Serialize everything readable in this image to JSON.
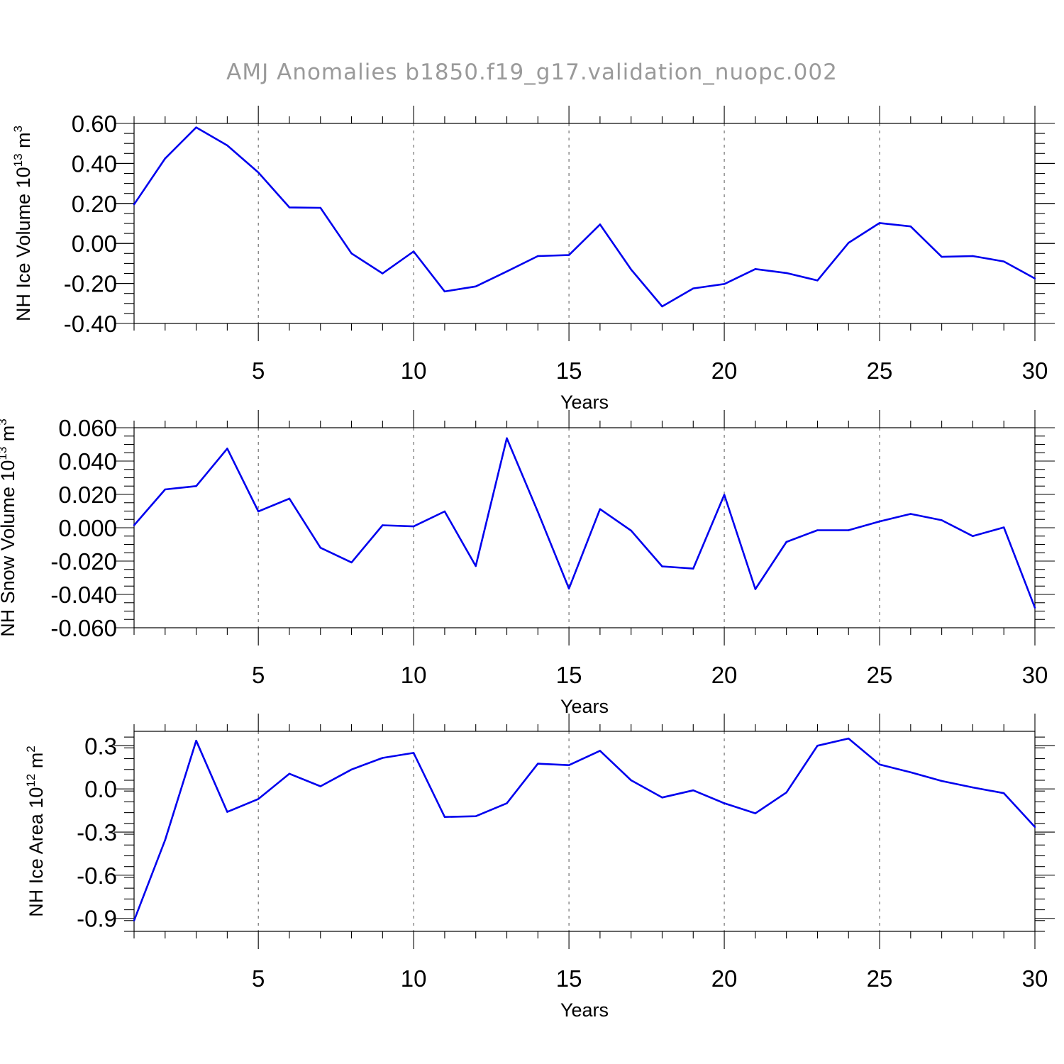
{
  "chart_data": {
    "title": "AMJ Anomalies b1850.f19_g17.validation_nuopc.002",
    "panels": [
      {
        "type": "line",
        "ylabel": "NH Ice Volume 10",
        "ylabel_exponent": "13",
        "ylabel_unit": "m",
        "ylabel_unit_exponent": "3",
        "xlabel": "Years",
        "xlim": [
          1,
          30
        ],
        "ylim": [
          -0.4,
          0.6
        ],
        "yticks": [
          -0.4,
          -0.2,
          0.0,
          0.2,
          0.4,
          0.6
        ],
        "ytick_labels": [
          "-0.40",
          "-0.20",
          "0.00",
          "0.20",
          "0.40",
          "0.60"
        ],
        "y_minor_step": 0.05,
        "x": [
          1,
          2,
          3,
          4,
          5,
          6,
          7,
          8,
          9,
          10,
          11,
          12,
          13,
          14,
          15,
          16,
          17,
          18,
          19,
          20,
          21,
          22,
          23,
          24,
          25,
          26,
          27,
          28,
          29,
          30
        ],
        "series": [
          {
            "name": "NH Ice Volume",
            "color": "#0000ee",
            "values": [
              0.195,
              0.425,
              0.58,
              0.49,
              0.355,
              0.18,
              0.178,
              -0.05,
              -0.15,
              -0.04,
              -0.24,
              -0.215,
              -0.14,
              -0.063,
              -0.058,
              0.095,
              -0.13,
              -0.315,
              -0.225,
              -0.203,
              -0.128,
              -0.148,
              -0.185,
              0.003,
              0.102,
              0.085,
              -0.067,
              -0.063,
              -0.09,
              -0.175
            ]
          }
        ]
      },
      {
        "type": "line",
        "ylabel": "NH Snow Volume 10",
        "ylabel_exponent": "13",
        "ylabel_unit": "m",
        "ylabel_unit_exponent": "3",
        "xlabel": "Years",
        "xlim": [
          1,
          30
        ],
        "ylim": [
          -0.06,
          0.06
        ],
        "yticks": [
          -0.06,
          -0.04,
          -0.02,
          0.0,
          0.02,
          0.04,
          0.06
        ],
        "ytick_labels": [
          "-0.060",
          "-0.040",
          "-0.020",
          "0.000",
          "0.020",
          "0.040",
          "0.060"
        ],
        "y_minor_step": 0.005,
        "x": [
          1,
          2,
          3,
          4,
          5,
          6,
          7,
          8,
          9,
          10,
          11,
          12,
          13,
          14,
          15,
          16,
          17,
          18,
          19,
          20,
          21,
          22,
          23,
          24,
          25,
          26,
          27,
          28,
          29,
          30
        ],
        "series": [
          {
            "name": "NH Snow Volume",
            "color": "#0000ee",
            "values": [
              0.0015,
              0.023,
              0.025,
              0.0475,
              0.0098,
              0.0175,
              -0.012,
              -0.0208,
              0.0015,
              0.0008,
              0.0098,
              -0.023,
              0.0537,
              0.0095,
              -0.0365,
              0.0112,
              -0.0017,
              -0.0232,
              -0.0245,
              0.0198,
              -0.0368,
              -0.0085,
              -0.0015,
              -0.0015,
              0.0038,
              0.0083,
              0.0045,
              -0.005,
              0.0002,
              -0.048
            ]
          }
        ]
      },
      {
        "type": "line",
        "ylabel": "NH Ice Area 10",
        "ylabel_exponent": "12",
        "ylabel_unit": "m",
        "ylabel_unit_exponent": "2",
        "xlabel": "Years",
        "xlim": [
          1,
          30
        ],
        "ylim": [
          -0.99,
          0.4
        ],
        "yticks": [
          -0.9,
          -0.6,
          -0.3,
          0.0,
          0.3
        ],
        "ytick_labels": [
          "-0.9",
          "-0.6",
          "-0.3",
          "0.0",
          "0.3"
        ],
        "y_minor_step": 0.075,
        "x": [
          1,
          2,
          3,
          4,
          5,
          6,
          7,
          8,
          9,
          10,
          11,
          12,
          13,
          14,
          15,
          16,
          17,
          18,
          19,
          20,
          21,
          22,
          23,
          24,
          25,
          26,
          27,
          28,
          29,
          30
        ],
        "series": [
          {
            "name": "NH Ice Area",
            "color": "#0000ee",
            "values": [
              -0.915,
              -0.355,
              0.335,
              -0.16,
              -0.07,
              0.105,
              0.018,
              0.135,
              0.215,
              0.25,
              -0.195,
              -0.19,
              -0.1,
              0.175,
              0.165,
              0.265,
              0.06,
              -0.06,
              -0.01,
              -0.1,
              -0.17,
              -0.025,
              0.3,
              0.35,
              0.17,
              0.115,
              0.055,
              0.01,
              -0.03,
              -0.265
            ]
          }
        ]
      }
    ],
    "xticks": [
      5,
      10,
      15,
      20,
      25,
      30
    ],
    "xtick_labels": [
      "5",
      "10",
      "15",
      "20",
      "25",
      "30"
    ],
    "grid": "dashed vertical at major x ticks"
  }
}
